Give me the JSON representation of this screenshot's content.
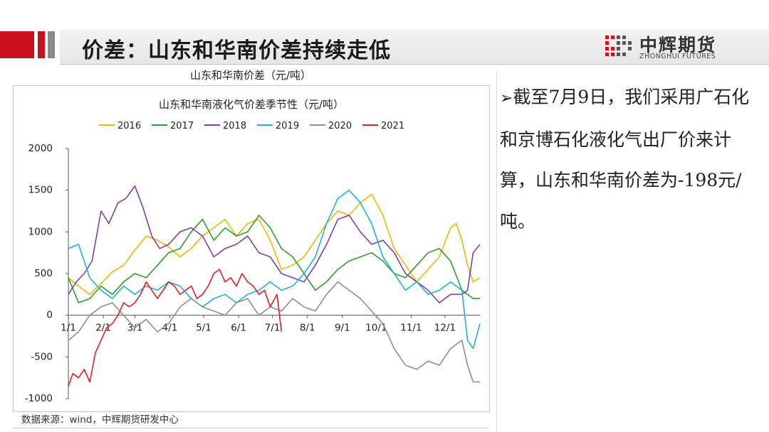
{
  "header": {
    "title": "价差：山东和华南价差持续走低",
    "logo_cn": "中辉期货",
    "logo_en": "ZHONGHUI FUTURES"
  },
  "caption": "山东和华南价差（元/吨）",
  "source": "数据来源：wind，中辉期货研发中心",
  "note": {
    "bullet": "➢",
    "text": "截至7月9日，我们采用广石化和京博石化液化气出厂价来计算，山东和华南价差为-198元/吨。"
  },
  "colors": {
    "brand_red": "#c8101e",
    "brand_gray": "#8a8a8a"
  },
  "chart_data": {
    "type": "line",
    "title": "山东和华南液化气价差季节性（元/吨）",
    "ylim": [
      -1000,
      2000
    ],
    "yticks": [
      2000,
      1500,
      1000,
      500,
      0,
      -500,
      -1000
    ],
    "xticks": [
      "1/1",
      "2/1",
      "3/1",
      "4/1",
      "5/1",
      "6/1",
      "7/1",
      "8/1",
      "9/1",
      "10/1",
      "11/1",
      "12/1"
    ],
    "x_day_of_year": [
      1,
      32,
      60,
      91,
      121,
      152,
      182,
      213,
      244,
      274,
      305,
      335
    ],
    "series": [
      {
        "name": "2016",
        "color": "#f5b400",
        "x": [
          1,
          10,
          20,
          30,
          40,
          50,
          60,
          70,
          80,
          90,
          100,
          110,
          120,
          130,
          140,
          150,
          160,
          170,
          180,
          190,
          200,
          210,
          220,
          230,
          240,
          250,
          260,
          270,
          280,
          290,
          300,
          310,
          320,
          330,
          340,
          345,
          350,
          355,
          360,
          366
        ],
        "y": [
          450,
          350,
          250,
          380,
          520,
          600,
          780,
          950,
          900,
          820,
          700,
          800,
          950,
          1050,
          1150,
          950,
          1100,
          1150,
          900,
          550,
          600,
          700,
          900,
          1100,
          1250,
          1200,
          1350,
          1450,
          1200,
          800,
          600,
          400,
          550,
          700,
          1050,
          1100,
          900,
          600,
          400,
          450
        ]
      },
      {
        "name": "2017",
        "color": "#2ca02c",
        "x": [
          1,
          10,
          20,
          30,
          40,
          50,
          60,
          70,
          80,
          90,
          100,
          110,
          120,
          130,
          140,
          150,
          160,
          170,
          180,
          190,
          200,
          210,
          220,
          230,
          240,
          250,
          260,
          270,
          280,
          290,
          300,
          310,
          320,
          330,
          340,
          350,
          360,
          366
        ],
        "y": [
          450,
          150,
          200,
          350,
          250,
          400,
          500,
          450,
          600,
          750,
          800,
          1000,
          1150,
          900,
          1050,
          950,
          1000,
          1200,
          1050,
          800,
          700,
          500,
          300,
          400,
          550,
          650,
          700,
          750,
          650,
          500,
          450,
          600,
          750,
          800,
          650,
          300,
          200,
          200
        ]
      },
      {
        "name": "2018",
        "color": "#7b3fb0",
        "x": [
          1,
          8,
          15,
          22,
          30,
          37,
          45,
          52,
          60,
          67,
          75,
          82,
          90,
          100,
          110,
          120,
          130,
          140,
          150,
          160,
          170,
          180,
          190,
          200,
          210,
          220,
          230,
          240,
          250,
          260,
          270,
          280,
          290,
          300,
          310,
          320,
          330,
          340,
          350,
          355,
          360,
          366
        ],
        "y": [
          250,
          400,
          500,
          650,
          1250,
          1100,
          1350,
          1400,
          1550,
          1300,
          950,
          800,
          850,
          1000,
          1050,
          950,
          700,
          800,
          850,
          950,
          750,
          700,
          500,
          450,
          400,
          600,
          850,
          1150,
          1200,
          1000,
          850,
          900,
          750,
          500,
          400,
          300,
          150,
          250,
          250,
          300,
          750,
          850
        ]
      },
      {
        "name": "2019",
        "color": "#1fb0e6",
        "x": [
          1,
          10,
          20,
          30,
          40,
          50,
          60,
          70,
          80,
          90,
          100,
          110,
          120,
          130,
          140,
          150,
          160,
          170,
          180,
          190,
          200,
          210,
          220,
          230,
          240,
          250,
          260,
          270,
          280,
          290,
          300,
          310,
          320,
          330,
          340,
          350,
          355,
          360,
          366
        ],
        "y": [
          800,
          850,
          450,
          300,
          200,
          350,
          250,
          350,
          300,
          400,
          350,
          200,
          100,
          200,
          250,
          150,
          250,
          300,
          400,
          300,
          350,
          500,
          700,
          1100,
          1400,
          1500,
          1350,
          1100,
          700,
          500,
          300,
          400,
          250,
          300,
          400,
          300,
          -300,
          -400,
          -100
        ]
      },
      {
        "name": "2020",
        "color": "#8f8f8f",
        "x": [
          1,
          10,
          20,
          30,
          40,
          50,
          60,
          70,
          80,
          90,
          100,
          110,
          120,
          130,
          140,
          150,
          160,
          170,
          180,
          190,
          200,
          210,
          220,
          230,
          240,
          250,
          260,
          270,
          280,
          290,
          300,
          310,
          320,
          330,
          340,
          350,
          355,
          360,
          366
        ],
        "y": [
          -300,
          -200,
          0,
          100,
          150,
          0,
          -150,
          -50,
          -200,
          -100,
          100,
          200,
          100,
          50,
          0,
          150,
          200,
          0,
          100,
          50,
          200,
          100,
          50,
          250,
          400,
          300,
          200,
          50,
          -100,
          -400,
          -600,
          -650,
          -550,
          -600,
          -400,
          -300,
          -600,
          -800,
          -800
        ]
      },
      {
        "name": "2021",
        "color": "#e61e1e",
        "x": [
          1,
          5,
          10,
          15,
          20,
          25,
          30,
          35,
          40,
          45,
          50,
          55,
          60,
          65,
          70,
          75,
          80,
          85,
          90,
          95,
          100,
          105,
          110,
          115,
          120,
          125,
          130,
          135,
          140,
          145,
          150,
          155,
          160,
          165,
          170,
          175,
          180,
          186,
          190
        ],
        "y": [
          -850,
          -700,
          -750,
          -650,
          -800,
          -450,
          -300,
          -150,
          -100,
          0,
          150,
          100,
          150,
          250,
          400,
          300,
          200,
          300,
          400,
          350,
          250,
          300,
          350,
          200,
          250,
          350,
          500,
          550,
          400,
          450,
          350,
          500,
          400,
          350,
          250,
          300,
          100,
          250,
          -198
        ]
      }
    ]
  }
}
